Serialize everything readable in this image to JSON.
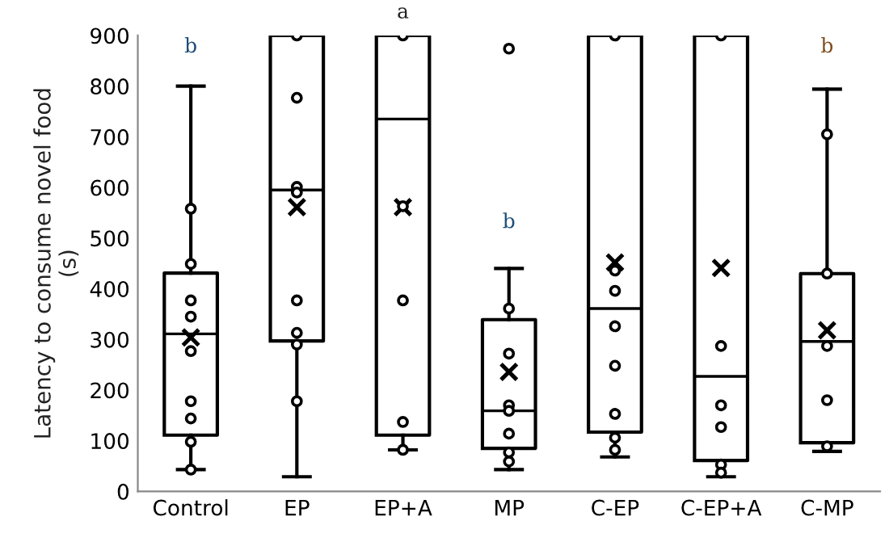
{
  "chart_data": {
    "type": "box",
    "ylabel": "Latency to consume novel food\n(s)",
    "categories": [
      "Control",
      "EP",
      "EP+A",
      "MP",
      "C-EP",
      "C-EP+A",
      "C-MP"
    ],
    "boxes": [
      {
        "low": 43,
        "q1": 111,
        "median": 311,
        "q3": 431,
        "high": 800,
        "mean": 304
      },
      {
        "low": 29,
        "q1": 297,
        "median": 595,
        "q3": 900,
        "high": 900,
        "mean": 561
      },
      {
        "low": 82,
        "q1": 111,
        "median": 735,
        "q3": 900,
        "high": 900,
        "mean": 561
      },
      {
        "low": 43,
        "q1": 85,
        "median": 159,
        "q3": 339,
        "high": 440,
        "mean": 236
      },
      {
        "low": 68,
        "q1": 117,
        "median": 361,
        "q3": 900,
        "high": 900,
        "mean": 452
      },
      {
        "low": 29,
        "q1": 61,
        "median": 227,
        "q3": 900,
        "high": 900,
        "mean": 441
      },
      {
        "low": 79,
        "q1": 96,
        "median": 296,
        "q3": 430,
        "high": 794,
        "mean": 318
      }
    ],
    "series": [
      {
        "type": "scatter",
        "color": "#000000",
        "marker": "circle",
        "x": [
          "Control",
          "Control",
          "Control",
          "Control",
          "Control",
          "Control",
          "Control",
          "Control",
          "Control",
          "EP",
          "EP",
          "EP",
          "EP",
          "EP",
          "EP",
          "EP",
          "EP",
          "EP+A",
          "EP+A",
          "EP+A",
          "EP+A",
          "EP+A",
          "EP+A",
          "MP",
          "MP",
          "MP",
          "MP",
          "MP",
          "MP",
          "MP",
          "MP",
          "C-EP",
          "C-EP",
          "C-EP",
          "C-EP",
          "C-EP",
          "C-EP",
          "C-EP",
          "C-EP",
          "C-EP+A",
          "C-EP+A",
          "C-EP+A",
          "C-EP+A",
          "C-EP+A",
          "C-EP+A",
          "C-MP",
          "C-MP",
          "C-MP",
          "C-MP",
          "C-MP"
        ],
        "values": [
          558,
          449,
          377,
          345,
          277,
          178,
          144,
          98,
          43,
          900,
          777,
          601,
          590,
          377,
          313,
          290,
          178,
          900,
          563,
          377,
          137,
          null,
          82,
          874,
          361,
          272,
          170,
          159,
          114,
          77,
          59,
          900,
          436,
          396,
          326,
          248,
          153,
          106,
          82,
          900,
          287,
          170,
          127,
          53,
          37,
          705,
          430,
          287,
          180,
          89
        ]
      }
    ],
    "ylim": [
      0,
      900
    ],
    "yticks": [
      0,
      100,
      200,
      300,
      400,
      500,
      600,
      700,
      800,
      900
    ],
    "annotations": [
      "b",
      "a",
      "b",
      "b"
    ]
  }
}
